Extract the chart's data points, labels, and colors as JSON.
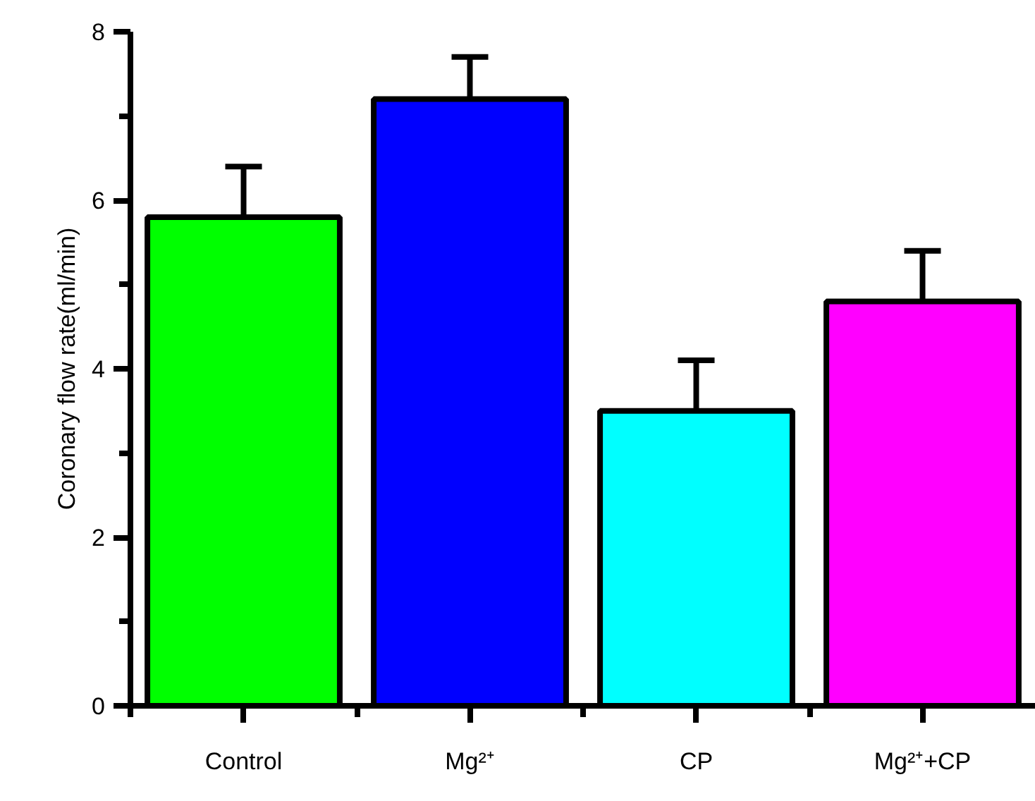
{
  "chart_data": {
    "type": "bar",
    "ylabel": "Coronary flow rate(ml/min)",
    "categories": [
      "Control",
      "Mg²⁺",
      "CP",
      "Mg²⁺+CP"
    ],
    "values": [
      5.8,
      7.2,
      3.5,
      4.8
    ],
    "colors": [
      "#00ff00",
      "#0000ff",
      "#00ffff",
      "#ff00ff"
    ],
    "errors": [
      [
        5.8,
        6.4
      ],
      [
        7.2,
        7.7
      ],
      [
        3.5,
        4.1
      ],
      [
        4.8,
        5.4
      ]
    ],
    "ylim": [
      0,
      8
    ],
    "yticks": [
      0,
      2,
      4,
      6,
      8
    ],
    "grid": false
  }
}
